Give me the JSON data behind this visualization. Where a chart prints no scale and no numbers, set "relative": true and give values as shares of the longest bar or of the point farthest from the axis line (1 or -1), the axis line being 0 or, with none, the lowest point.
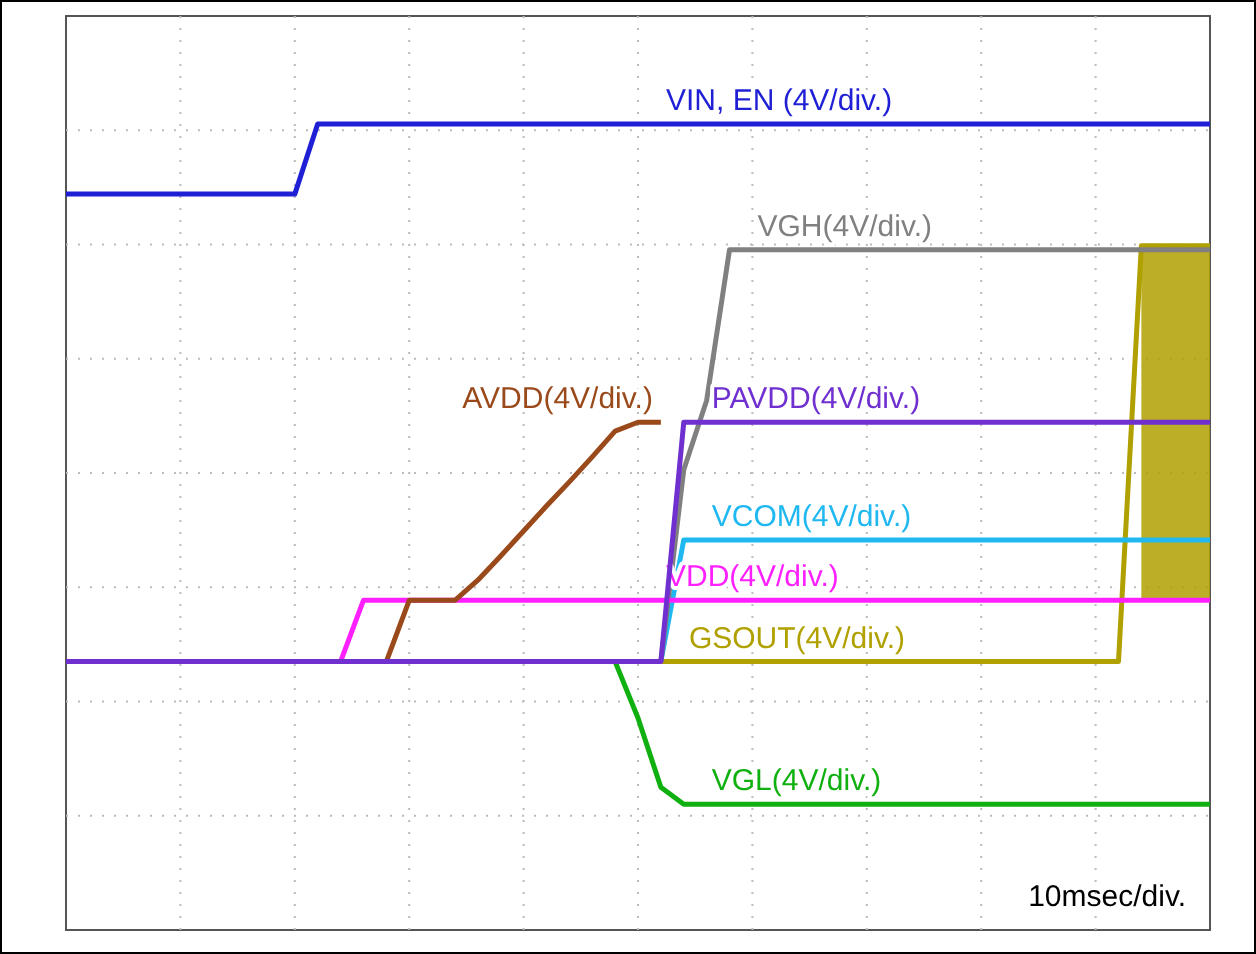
{
  "chart_data": {
    "type": "line",
    "relative": true,
    "grid": true,
    "annotations": [
      "10msec/div."
    ],
    "categories": [
      null,
      null,
      null,
      null,
      null,
      null,
      null,
      null,
      null,
      null,
      null,
      null,
      null,
      null,
      null,
      null,
      null,
      null,
      null,
      null,
      null,
      null,
      null,
      null,
      null,
      null,
      null,
      null,
      null,
      null,
      null,
      null,
      null,
      null,
      null,
      null,
      null,
      null,
      null,
      null,
      null,
      null,
      null,
      null,
      null,
      null,
      null,
      null,
      null,
      null,
      null
    ],
    "series": [
      {
        "name": "VGL(4V/div.)",
        "color": "#10b010",
        "values": [
          null,
          null,
          null,
          null,
          null,
          null,
          null,
          null,
          null,
          null,
          null,
          null,
          null,
          null,
          null,
          null,
          null,
          null,
          null,
          null,
          null,
          null,
          null,
          null,
          0.333,
          0.263,
          0.177,
          0.156,
          0.156,
          0.156,
          0.156,
          0.156,
          0.156,
          0.156,
          0.156,
          0.156,
          0.156,
          0.156,
          0.156,
          0.156,
          0.156,
          0.156,
          0.156,
          0.156,
          0.156,
          0.156,
          0.156,
          0.156,
          0.156,
          0.156,
          0.156
        ]
      },
      {
        "name": "GSOUT(4V/div.)",
        "color": "#b0a000",
        "values": [
          null,
          null,
          null,
          null,
          null,
          null,
          null,
          null,
          null,
          null,
          null,
          null,
          null,
          null,
          null,
          null,
          null,
          null,
          null,
          null,
          null,
          null,
          null,
          null,
          null,
          null,
          0.333,
          0.333,
          0.333,
          0.333,
          0.333,
          0.333,
          0.333,
          0.333,
          0.333,
          0.333,
          0.333,
          0.333,
          0.333,
          0.333,
          0.333,
          0.333,
          0.333,
          0.333,
          0.333,
          0.333,
          0.333,
          0.849,
          0.849,
          0.849,
          0.849
        ],
        "lower": [
          null,
          null,
          null,
          null,
          null,
          null,
          null,
          null,
          null,
          null,
          null,
          null,
          null,
          null,
          null,
          null,
          null,
          null,
          null,
          null,
          null,
          null,
          null,
          null,
          null,
          null,
          null,
          null,
          null,
          null,
          null,
          null,
          null,
          null,
          null,
          null,
          null,
          null,
          null,
          null,
          null,
          null,
          null,
          null,
          null,
          null,
          null,
          0.409,
          0.409,
          0.409,
          0.409
        ],
        "upper": [
          null,
          null,
          null,
          null,
          null,
          null,
          null,
          null,
          null,
          null,
          null,
          null,
          null,
          null,
          null,
          null,
          null,
          null,
          null,
          null,
          null,
          null,
          null,
          null,
          null,
          null,
          null,
          null,
          null,
          null,
          null,
          null,
          null,
          null,
          null,
          null,
          null,
          null,
          null,
          null,
          null,
          null,
          null,
          null,
          null,
          null,
          null,
          0.849,
          0.849,
          0.849,
          0.849
        ]
      },
      {
        "name": "VCOM(4V/div.)",
        "color": "#1fb8f0",
        "values": [
          null,
          null,
          null,
          null,
          null,
          null,
          null,
          null,
          null,
          null,
          null,
          null,
          null,
          null,
          null,
          null,
          null,
          null,
          null,
          null,
          null,
          null,
          null,
          null,
          null,
          null,
          0.333,
          0.484,
          0.484,
          0.484,
          0.484,
          0.484,
          0.484,
          0.484,
          0.484,
          0.484,
          0.484,
          0.484,
          0.484,
          0.484,
          0.484,
          0.484,
          0.484,
          0.484,
          0.484,
          0.484,
          0.484,
          0.484,
          0.484,
          0.484,
          0.484
        ]
      },
      {
        "name": "VGH(4V/div.)",
        "color": "#808080",
        "values": [
          null,
          null,
          null,
          null,
          null,
          null,
          null,
          null,
          null,
          null,
          null,
          null,
          null,
          null,
          null,
          null,
          null,
          null,
          null,
          null,
          null,
          null,
          null,
          null,
          null,
          null,
          0.333,
          0.571,
          0.657,
          0.844,
          0.844,
          0.844,
          0.844,
          0.844,
          0.844,
          0.844,
          0.844,
          0.844,
          0.844,
          0.844,
          0.844,
          0.844,
          0.844,
          0.844,
          0.844,
          0.844,
          0.844,
          0.844,
          0.844,
          0.844,
          0.844
        ]
      },
      {
        "name": "VDD(4V/div.)",
        "color": "#ff20ff",
        "values": [
          null,
          null,
          null,
          null,
          null,
          null,
          null,
          null,
          null,
          null,
          null,
          null,
          0.333,
          0.409,
          0.409,
          0.409,
          0.409,
          0.409,
          0.409,
          0.409,
          0.409,
          0.409,
          0.409,
          0.409,
          0.409,
          0.409,
          0.409,
          0.409,
          0.409,
          0.409,
          0.409,
          0.409,
          0.409,
          0.409,
          0.409,
          0.409,
          0.409,
          0.409,
          0.409,
          0.409,
          0.409,
          0.409,
          0.409,
          0.409,
          0.409,
          0.409,
          0.409,
          0.409,
          0.409,
          0.409,
          0.409
        ]
      },
      {
        "name": "AVDD(4V/div.)",
        "color": "#9a4a1a",
        "values": [
          null,
          null,
          null,
          null,
          null,
          null,
          null,
          null,
          null,
          null,
          null,
          null,
          null,
          null,
          0.333,
          0.409,
          0.409,
          0.409,
          0.434,
          0.464,
          0.495,
          0.526,
          0.556,
          0.587,
          0.619,
          0.63,
          0.63,
          null,
          null,
          null,
          null,
          null,
          null,
          null,
          null,
          null,
          null,
          null,
          null,
          null,
          null,
          null,
          null,
          null,
          null,
          null,
          null,
          null,
          null,
          null,
          null
        ]
      },
      {
        "name": "PAVDD(4V/div.)",
        "color": "#7030d0",
        "values": [
          0.333,
          0.333,
          0.333,
          0.333,
          0.333,
          0.333,
          0.333,
          0.333,
          0.333,
          0.333,
          0.333,
          0.333,
          0.333,
          0.333,
          0.333,
          0.333,
          0.333,
          0.333,
          0.333,
          0.333,
          0.333,
          0.333,
          0.333,
          0.333,
          0.333,
          0.333,
          0.333,
          0.63,
          0.63,
          0.63,
          0.63,
          0.63,
          0.63,
          0.63,
          0.63,
          0.63,
          0.63,
          0.63,
          0.63,
          0.63,
          0.63,
          0.63,
          0.63,
          0.63,
          0.63,
          0.63,
          0.63,
          0.63,
          0.63,
          0.63,
          0.63
        ]
      },
      {
        "name": "VIN, EN (4V/div.)",
        "color": "#1f1fd6",
        "values": [
          0.913,
          0.913,
          0.913,
          0.913,
          0.913,
          0.913,
          0.913,
          0.913,
          0.913,
          0.913,
          0.913,
          1,
          1,
          1,
          1,
          1,
          1,
          1,
          1,
          1,
          1,
          1,
          1,
          1,
          1,
          1,
          1,
          1,
          1,
          1,
          1,
          1,
          1,
          1,
          1,
          1,
          1,
          1,
          1,
          1,
          1,
          1,
          1,
          1,
          1,
          1,
          1,
          1,
          1,
          1,
          1
        ]
      }
    ]
  }
}
